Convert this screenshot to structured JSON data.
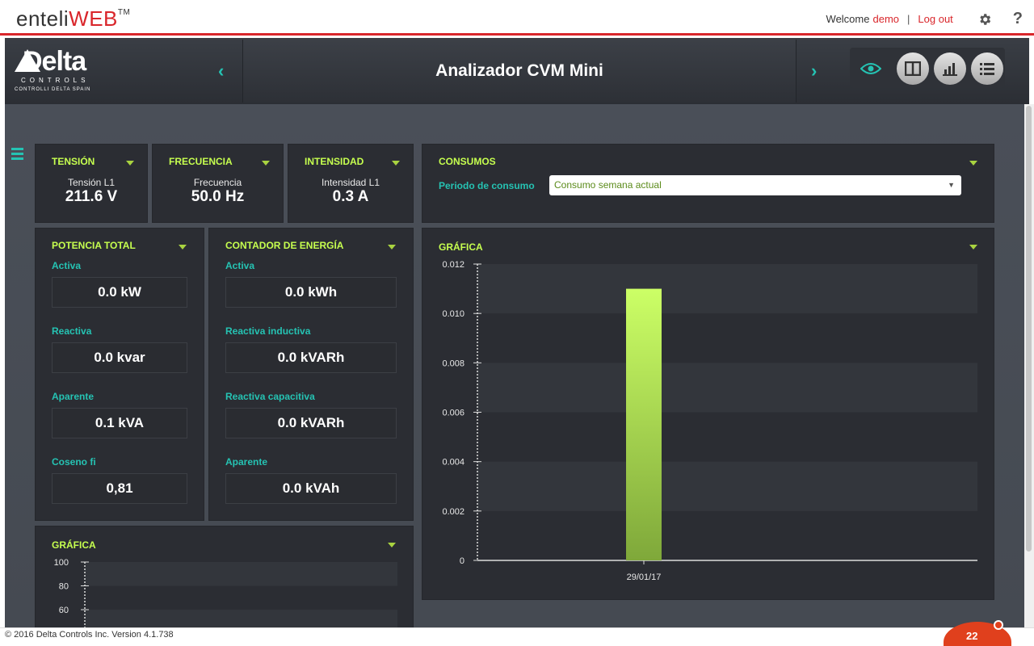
{
  "app": {
    "brand_prefix": "enteli",
    "brand_suffix": "WEB",
    "brand_tm": "TM",
    "welcome": "Welcome",
    "user": "demo",
    "separator": "|",
    "logout": "Log out",
    "help": "?"
  },
  "header": {
    "logo_main": "Delta",
    "logo_sub": "CONTROLS",
    "logo_tag": "CONTROLLI DELTA SPAIN",
    "title": "Analizador CVM Mini",
    "nav_prev": "‹",
    "nav_next": "›"
  },
  "panels": {
    "tension": {
      "title": "TENSIÓN",
      "label": "Tensión L1",
      "value": "211.6 V"
    },
    "frecuencia": {
      "title": "FRECUENCIA",
      "label": "Frecuencia",
      "value": "50.0 Hz"
    },
    "intensidad": {
      "title": "INTENSIDAD",
      "label": "Intensidad L1",
      "value": "0.3 A"
    },
    "consumos": {
      "title": "CONSUMOS",
      "period_label": "Periodo de consumo",
      "period_value": "Consumo semana actual",
      "period_arrow": "▼"
    },
    "potencia": {
      "title": "POTENCIA TOTAL",
      "items": [
        {
          "label": "Activa",
          "value": "0.0 kW"
        },
        {
          "label": "Reactiva",
          "value": "0.0 kvar"
        },
        {
          "label": "Aparente",
          "value": "0.1 kVA"
        },
        {
          "label": "Coseno fi",
          "value": "0,81"
        }
      ]
    },
    "contador": {
      "title": "CONTADOR DE ENERGÍA",
      "items": [
        {
          "label": "Activa",
          "value": "0.0 kWh"
        },
        {
          "label": "Reactiva inductiva",
          "value": "0.0 kVARh"
        },
        {
          "label": "Reactiva capacitiva",
          "value": "0.0 kVARh"
        },
        {
          "label": "Aparente",
          "value": "0.0 kVAh"
        }
      ]
    },
    "grafica_right": {
      "title": "GRÁFICA"
    },
    "grafica_left": {
      "title": "GRÁFICA"
    }
  },
  "chart_data": [
    {
      "type": "bar",
      "categories": [
        "29/01/17"
      ],
      "values": [
        0.011
      ],
      "title": "GRÁFICA",
      "xlabel": "",
      "ylabel": "",
      "ylim": [
        0,
        0.012
      ],
      "yticks": [
        "0",
        "0.002",
        "0.004",
        "0.006",
        "0.008",
        "0.010",
        "0.012"
      ],
      "grid": true,
      "colors": {
        "bar_top": "#ccff66",
        "bar_bottom": "#7fa83a"
      }
    },
    {
      "type": "line",
      "title": "GRÁFICA",
      "ylim": [
        0,
        100
      ],
      "yticks": [
        "60",
        "80",
        "100"
      ],
      "grid": true
    }
  ],
  "footer": {
    "copyright": "© 2016 Delta Controls Inc. Version 4.1.738",
    "badge": "22"
  },
  "colors": {
    "accent": "#d9262b",
    "teal": "#25c3b3",
    "lime": "#c6ff4f"
  }
}
